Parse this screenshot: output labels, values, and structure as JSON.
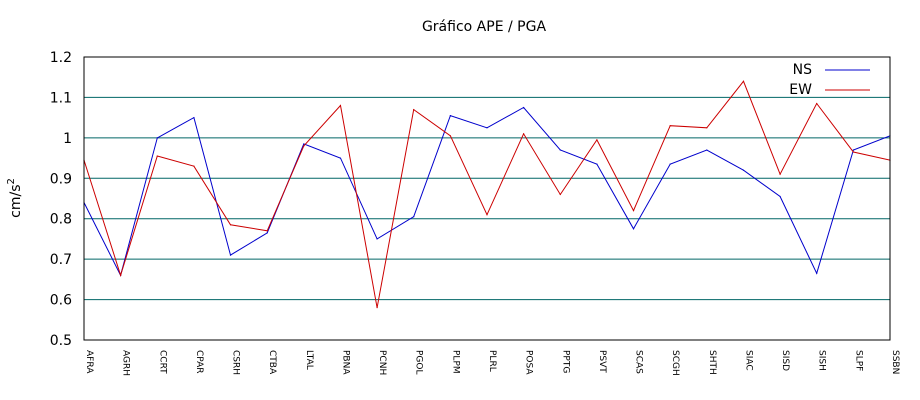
{
  "chart_data": {
    "type": "line",
    "title": "Gráfico  APE / PGA",
    "ylabel": "cm/s",
    "ylabel_superscript": "2",
    "xlabel": "",
    "ylim": [
      0.5,
      1.2
    ],
    "yticks": [
      "0.5",
      "0.6",
      "0.7",
      "0.8",
      "0.9",
      "1",
      "1.1",
      "1.2"
    ],
    "grid": true,
    "legend_position": "top-right",
    "categories": [
      "AFRA",
      "AGRH",
      "CCRT",
      "CPAR",
      "CSRH",
      "CTBA",
      "LTAL",
      "PBNA",
      "PCNH",
      "PGOL",
      "PLPM",
      "PLRL",
      "POSA",
      "PPTG",
      "PSVT",
      "SCAS",
      "SCGH",
      "SHTH",
      "SIAC",
      "SISD",
      "SISH",
      "SLPF",
      "SSBN"
    ],
    "series": [
      {
        "name": "NS",
        "color": "#0000cc",
        "values": [
          0.84,
          0.66,
          1.0,
          1.05,
          0.71,
          0.765,
          0.985,
          0.95,
          0.75,
          0.805,
          1.055,
          1.025,
          1.075,
          0.97,
          0.935,
          0.775,
          0.935,
          0.97,
          0.92,
          0.855,
          0.665,
          0.97,
          1.005
        ]
      },
      {
        "name": "EW",
        "color": "#cc0000",
        "values": [
          0.945,
          0.66,
          0.955,
          0.93,
          0.785,
          0.77,
          0.98,
          1.08,
          0.58,
          1.07,
          1.005,
          0.81,
          1.01,
          0.86,
          0.995,
          0.82,
          1.03,
          1.025,
          1.14,
          0.91,
          1.085,
          0.965,
          0.945
        ]
      }
    ]
  }
}
